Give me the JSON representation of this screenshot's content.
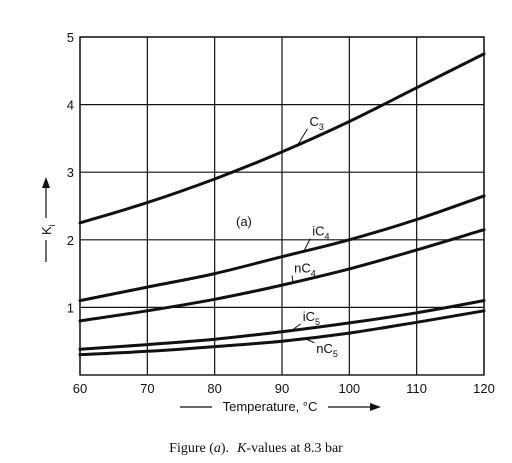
{
  "chart_data": {
    "type": "line",
    "xlabel": "Temperature, °C",
    "ylabel": "K",
    "ylabel_sub": "i",
    "xlim": [
      60,
      120
    ],
    "ylim": [
      0,
      5
    ],
    "xticks": [
      60,
      70,
      80,
      90,
      100,
      110,
      120
    ],
    "yticks": [
      1,
      2,
      3,
      4,
      5
    ],
    "grid": true,
    "annotation": "(a)",
    "series": [
      {
        "name": "C",
        "sub": "3",
        "x": [
          60,
          70,
          80,
          90,
          100,
          110,
          120
        ],
        "values": [
          2.25,
          2.55,
          2.9,
          3.3,
          3.75,
          4.25,
          4.75
        ]
      },
      {
        "name": "iC",
        "sub": "4",
        "x": [
          60,
          70,
          80,
          90,
          100,
          110,
          120
        ],
        "values": [
          1.1,
          1.3,
          1.5,
          1.75,
          2.0,
          2.3,
          2.65
        ]
      },
      {
        "name": "nC",
        "sub": "4",
        "x": [
          60,
          70,
          80,
          90,
          100,
          110,
          120
        ],
        "values": [
          0.8,
          0.95,
          1.12,
          1.33,
          1.57,
          1.85,
          2.15
        ]
      },
      {
        "name": "iC",
        "sub": "5",
        "x": [
          60,
          70,
          80,
          90,
          100,
          110,
          120
        ],
        "values": [
          0.38,
          0.45,
          0.53,
          0.64,
          0.77,
          0.92,
          1.1
        ]
      },
      {
        "name": "nC",
        "sub": "5",
        "x": [
          60,
          70,
          80,
          90,
          100,
          110,
          120
        ],
        "values": [
          0.3,
          0.35,
          0.42,
          0.5,
          0.62,
          0.78,
          0.95
        ]
      }
    ]
  },
  "caption": {
    "prefix": "Figure (",
    "letter": "a",
    "suffix": ").",
    "k": "K",
    "rest": "-values at 8.3 bar"
  }
}
